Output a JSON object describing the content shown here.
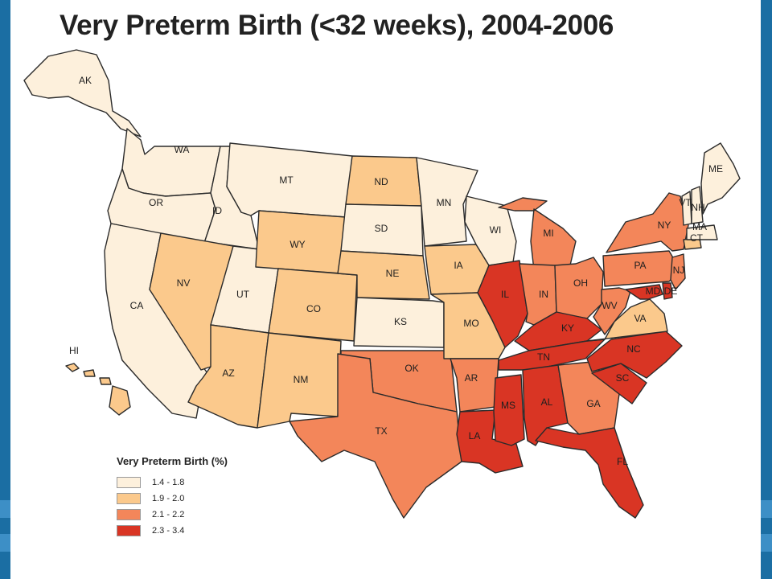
{
  "title": "Very Preterm Birth (<32 weeks), 2004-2006",
  "legend": {
    "title": "Very Preterm Birth (%)",
    "classes": [
      {
        "label": "1.4 - 1.8",
        "color": "#fdf0dc"
      },
      {
        "label": "1.9 - 2.0",
        "color": "#fbc98c"
      },
      {
        "label": "2.1 - 2.2",
        "color": "#f3865a"
      },
      {
        "label": "2.3 - 3.4",
        "color": "#d93524"
      }
    ]
  },
  "states": [
    {
      "abbr": "AK",
      "class": 0
    },
    {
      "abbr": "HI",
      "class": 1
    },
    {
      "abbr": "WA",
      "class": 0
    },
    {
      "abbr": "OR",
      "class": 0
    },
    {
      "abbr": "CA",
      "class": 0
    },
    {
      "abbr": "ID",
      "class": 0
    },
    {
      "abbr": "NV",
      "class": 1
    },
    {
      "abbr": "UT",
      "class": 0
    },
    {
      "abbr": "AZ",
      "class": 1
    },
    {
      "abbr": "MT",
      "class": 0
    },
    {
      "abbr": "WY",
      "class": 1
    },
    {
      "abbr": "CO",
      "class": 1
    },
    {
      "abbr": "NM",
      "class": 1
    },
    {
      "abbr": "ND",
      "class": 1
    },
    {
      "abbr": "SD",
      "class": 0
    },
    {
      "abbr": "NE",
      "class": 1
    },
    {
      "abbr": "KS",
      "class": 0
    },
    {
      "abbr": "OK",
      "class": 2
    },
    {
      "abbr": "TX",
      "class": 2
    },
    {
      "abbr": "MN",
      "class": 0
    },
    {
      "abbr": "IA",
      "class": 1
    },
    {
      "abbr": "MO",
      "class": 1
    },
    {
      "abbr": "AR",
      "class": 2
    },
    {
      "abbr": "LA",
      "class": 3
    },
    {
      "abbr": "WI",
      "class": 0
    },
    {
      "abbr": "IL",
      "class": 3
    },
    {
      "abbr": "MI",
      "class": 2
    },
    {
      "abbr": "IN",
      "class": 2
    },
    {
      "abbr": "OH",
      "class": 2
    },
    {
      "abbr": "KY",
      "class": 3
    },
    {
      "abbr": "TN",
      "class": 3
    },
    {
      "abbr": "MS",
      "class": 3
    },
    {
      "abbr": "AL",
      "class": 3
    },
    {
      "abbr": "GA",
      "class": 2
    },
    {
      "abbr": "FL",
      "class": 3
    },
    {
      "abbr": "SC",
      "class": 3
    },
    {
      "abbr": "NC",
      "class": 3
    },
    {
      "abbr": "VA",
      "class": 1
    },
    {
      "abbr": "WV",
      "class": 2
    },
    {
      "abbr": "PA",
      "class": 2
    },
    {
      "abbr": "NY",
      "class": 2
    },
    {
      "abbr": "MD",
      "class": 3
    },
    {
      "abbr": "DE",
      "class": 3
    },
    {
      "abbr": "NJ",
      "class": 2
    },
    {
      "abbr": "CT",
      "class": 1
    },
    {
      "abbr": "MA",
      "class": 0
    },
    {
      "abbr": "VT",
      "class": 0
    },
    {
      "abbr": "NH",
      "class": 0
    },
    {
      "abbr": "ME",
      "class": 0
    }
  ]
}
